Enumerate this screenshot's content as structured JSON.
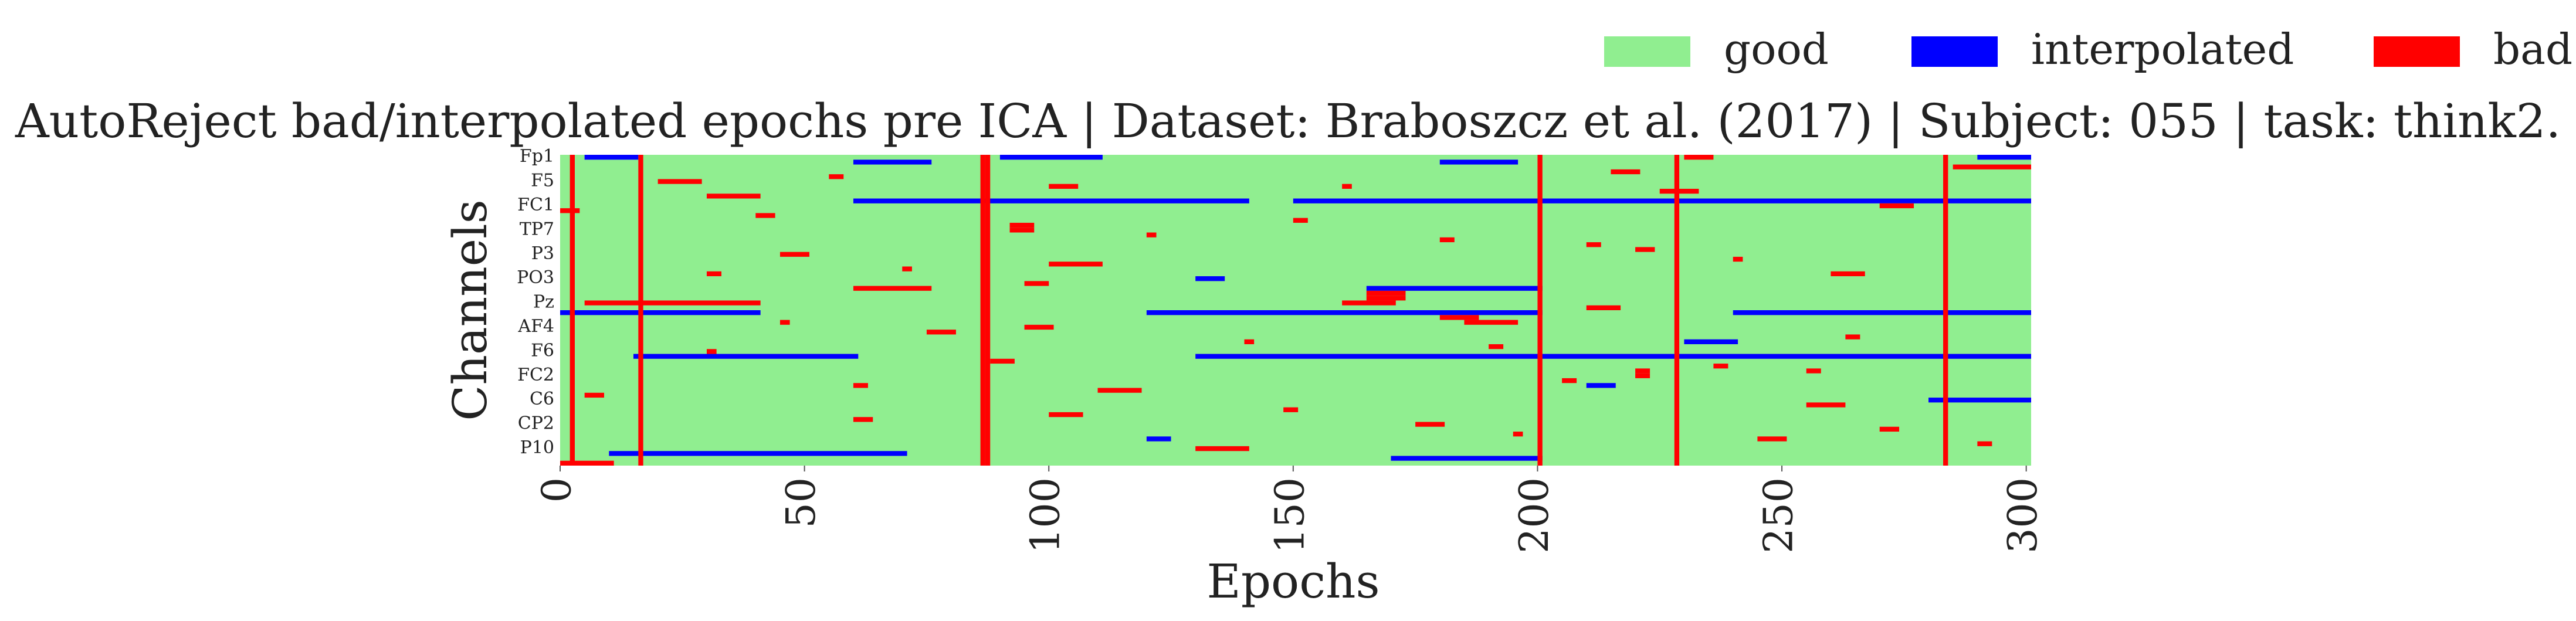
{
  "chart_data": {
    "type": "heatmap",
    "title": "AutoReject bad/interpolated epochs pre ICA | Dataset: Braboszcz et al. (2017) | Subject: 055 | task: think2.",
    "xlabel": "Epochs",
    "ylabel": "Channels",
    "categories": [
      "Fp1",
      null,
      null,
      null,
      null,
      "F5",
      null,
      null,
      null,
      null,
      "FC1",
      null,
      null,
      null,
      null,
      "TP7",
      null,
      null,
      null,
      null,
      "P3",
      null,
      null,
      null,
      null,
      "PO3",
      null,
      null,
      null,
      null,
      "Pz",
      null,
      null,
      null,
      null,
      "AF4",
      null,
      null,
      null,
      null,
      "F6",
      null,
      null,
      null,
      null,
      "FC2",
      null,
      null,
      null,
      null,
      "C6",
      null,
      null,
      null,
      null,
      "CP2",
      null,
      null,
      null,
      null,
      "P10",
      null,
      null,
      null
    ],
    "xlim": [
      0,
      301
    ],
    "xticks": [
      0,
      50,
      100,
      150,
      200,
      250,
      300
    ],
    "series": [
      {
        "name": "good",
        "color": "#90ee90"
      },
      {
        "name": "interpolated",
        "color": "#0000ff"
      },
      {
        "name": "bad",
        "color": "#ff0000"
      }
    ],
    "legend": "top-right",
    "bad_epochs": [
      2,
      16,
      86,
      87,
      200,
      228,
      283
    ],
    "cells": [
      [
        9,
        60,
        140,
        1
      ],
      [
        9,
        150,
        300,
        1
      ],
      [
        32,
        0,
        40,
        1
      ],
      [
        32,
        120,
        200,
        1
      ],
      [
        32,
        240,
        300,
        1
      ],
      [
        41,
        15,
        60,
        1
      ],
      [
        41,
        130,
        300,
        1
      ],
      [
        0,
        90,
        110,
        1
      ],
      [
        1,
        180,
        195,
        1
      ],
      [
        0,
        290,
        300,
        1
      ],
      [
        61,
        10,
        70,
        1
      ],
      [
        62,
        170,
        200,
        1
      ],
      [
        0,
        5,
        15,
        1
      ],
      [
        1,
        60,
        75,
        1
      ],
      [
        27,
        165,
        200,
        1
      ],
      [
        38,
        230,
        240,
        1
      ],
      [
        50,
        280,
        300,
        1
      ],
      [
        25,
        130,
        135,
        1
      ],
      [
        47,
        210,
        215,
        1
      ],
      [
        58,
        120,
        124,
        1
      ],
      [
        28,
        165,
        172,
        2
      ],
      [
        29,
        165,
        172,
        2
      ],
      [
        30,
        160,
        170,
        2
      ],
      [
        8,
        30,
        40,
        2
      ],
      [
        6,
        100,
        105,
        2
      ],
      [
        14,
        92,
        96,
        2
      ],
      [
        15,
        92,
        96,
        2
      ],
      [
        24,
        260,
        266,
        2
      ],
      [
        44,
        220,
        222,
        2
      ],
      [
        45,
        220,
        222,
        2
      ],
      [
        51,
        255,
        262,
        2
      ],
      [
        0,
        230,
        235,
        2
      ],
      [
        2,
        285,
        300,
        2
      ],
      [
        3,
        215,
        220,
        2
      ],
      [
        33,
        180,
        187,
        2
      ],
      [
        34,
        185,
        195,
        2
      ],
      [
        20,
        45,
        50,
        2
      ],
      [
        22,
        100,
        110,
        2
      ],
      [
        27,
        60,
        75,
        2
      ],
      [
        30,
        5,
        40,
        2
      ],
      [
        48,
        110,
        118,
        2
      ],
      [
        55,
        175,
        180,
        2
      ],
      [
        58,
        245,
        250,
        2
      ],
      [
        12,
        40,
        43,
        2
      ],
      [
        18,
        210,
        212,
        2
      ],
      [
        38,
        140,
        141,
        2
      ],
      [
        47,
        60,
        62,
        2
      ],
      [
        53,
        100,
        106,
        2
      ],
      [
        5,
        20,
        28,
        2
      ],
      [
        7,
        225,
        232,
        2
      ],
      [
        11,
        0,
        3,
        2
      ],
      [
        19,
        220,
        223,
        2
      ],
      [
        26,
        95,
        99,
        2
      ],
      [
        31,
        210,
        216,
        2
      ],
      [
        36,
        75,
        80,
        2
      ],
      [
        39,
        190,
        192,
        2
      ],
      [
        43,
        236,
        238,
        2
      ],
      [
        49,
        5,
        8,
        2
      ],
      [
        52,
        148,
        150,
        2
      ],
      [
        56,
        270,
        273,
        2
      ],
      [
        60,
        130,
        140,
        2
      ],
      [
        63,
        0,
        10,
        2
      ],
      [
        4,
        55,
        57,
        2
      ],
      [
        10,
        270,
        276,
        2
      ],
      [
        13,
        150,
        152,
        2
      ],
      [
        17,
        180,
        182,
        2
      ],
      [
        21,
        240,
        241,
        2
      ],
      [
        23,
        70,
        71,
        2
      ],
      [
        35,
        95,
        100,
        2
      ],
      [
        37,
        263,
        265,
        2
      ],
      [
        40,
        30,
        31,
        2
      ],
      [
        42,
        88,
        92,
        2
      ],
      [
        46,
        205,
        207,
        2
      ],
      [
        54,
        60,
        63,
        2
      ],
      [
        57,
        195,
        196,
        2
      ],
      [
        59,
        290,
        292,
        2
      ],
      [
        16,
        120,
        121,
        2
      ],
      [
        6,
        160,
        161,
        2
      ],
      [
        24,
        30,
        32,
        2
      ],
      [
        34,
        45,
        46,
        2
      ],
      [
        44,
        255,
        257,
        2
      ]
    ]
  }
}
